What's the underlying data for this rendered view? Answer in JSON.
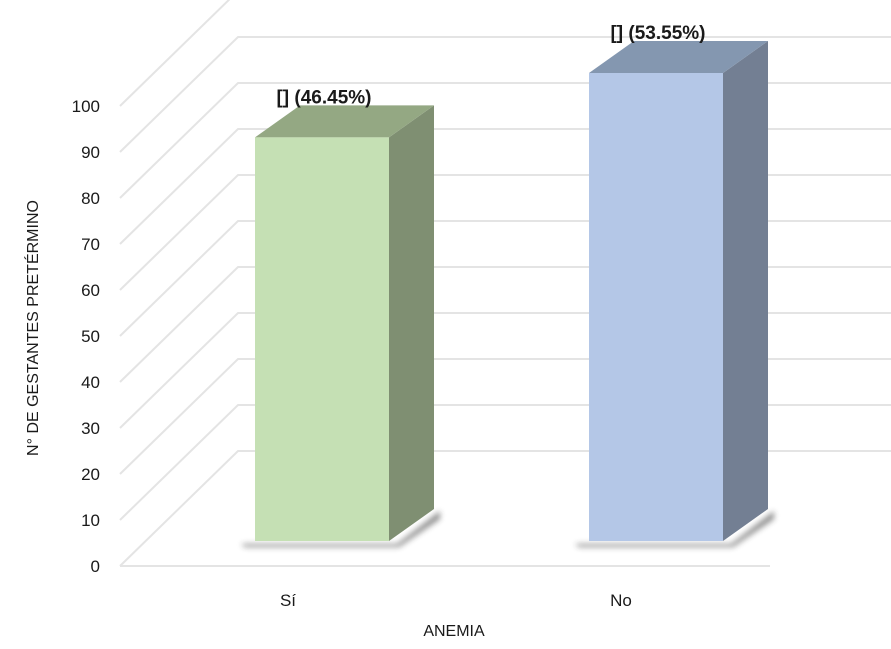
{
  "chart_data": {
    "type": "bar",
    "three_d": true,
    "categories": [
      "Sí",
      "No"
    ],
    "values": [
      91,
      105
    ],
    "data_labels": [
      "[] (46.45%)",
      "[] (53.55%)"
    ],
    "xlabel": "ANEMIA",
    "ylabel": "N° DE GESTANTES PRETÉRMINO",
    "ylim": [
      0,
      110
    ],
    "yticks": [
      0,
      10,
      20,
      30,
      40,
      50,
      60,
      70,
      80,
      90,
      100
    ],
    "grid": true,
    "legend": "none",
    "colors": {
      "bar_front": [
        "#c5e0b4",
        "#b4c7e7"
      ],
      "bar_side": [
        "#7f8f72",
        "#737f93"
      ],
      "bar_top": [
        "#94a883",
        "#8497b0"
      ],
      "grid": "#e4e4e4"
    }
  }
}
